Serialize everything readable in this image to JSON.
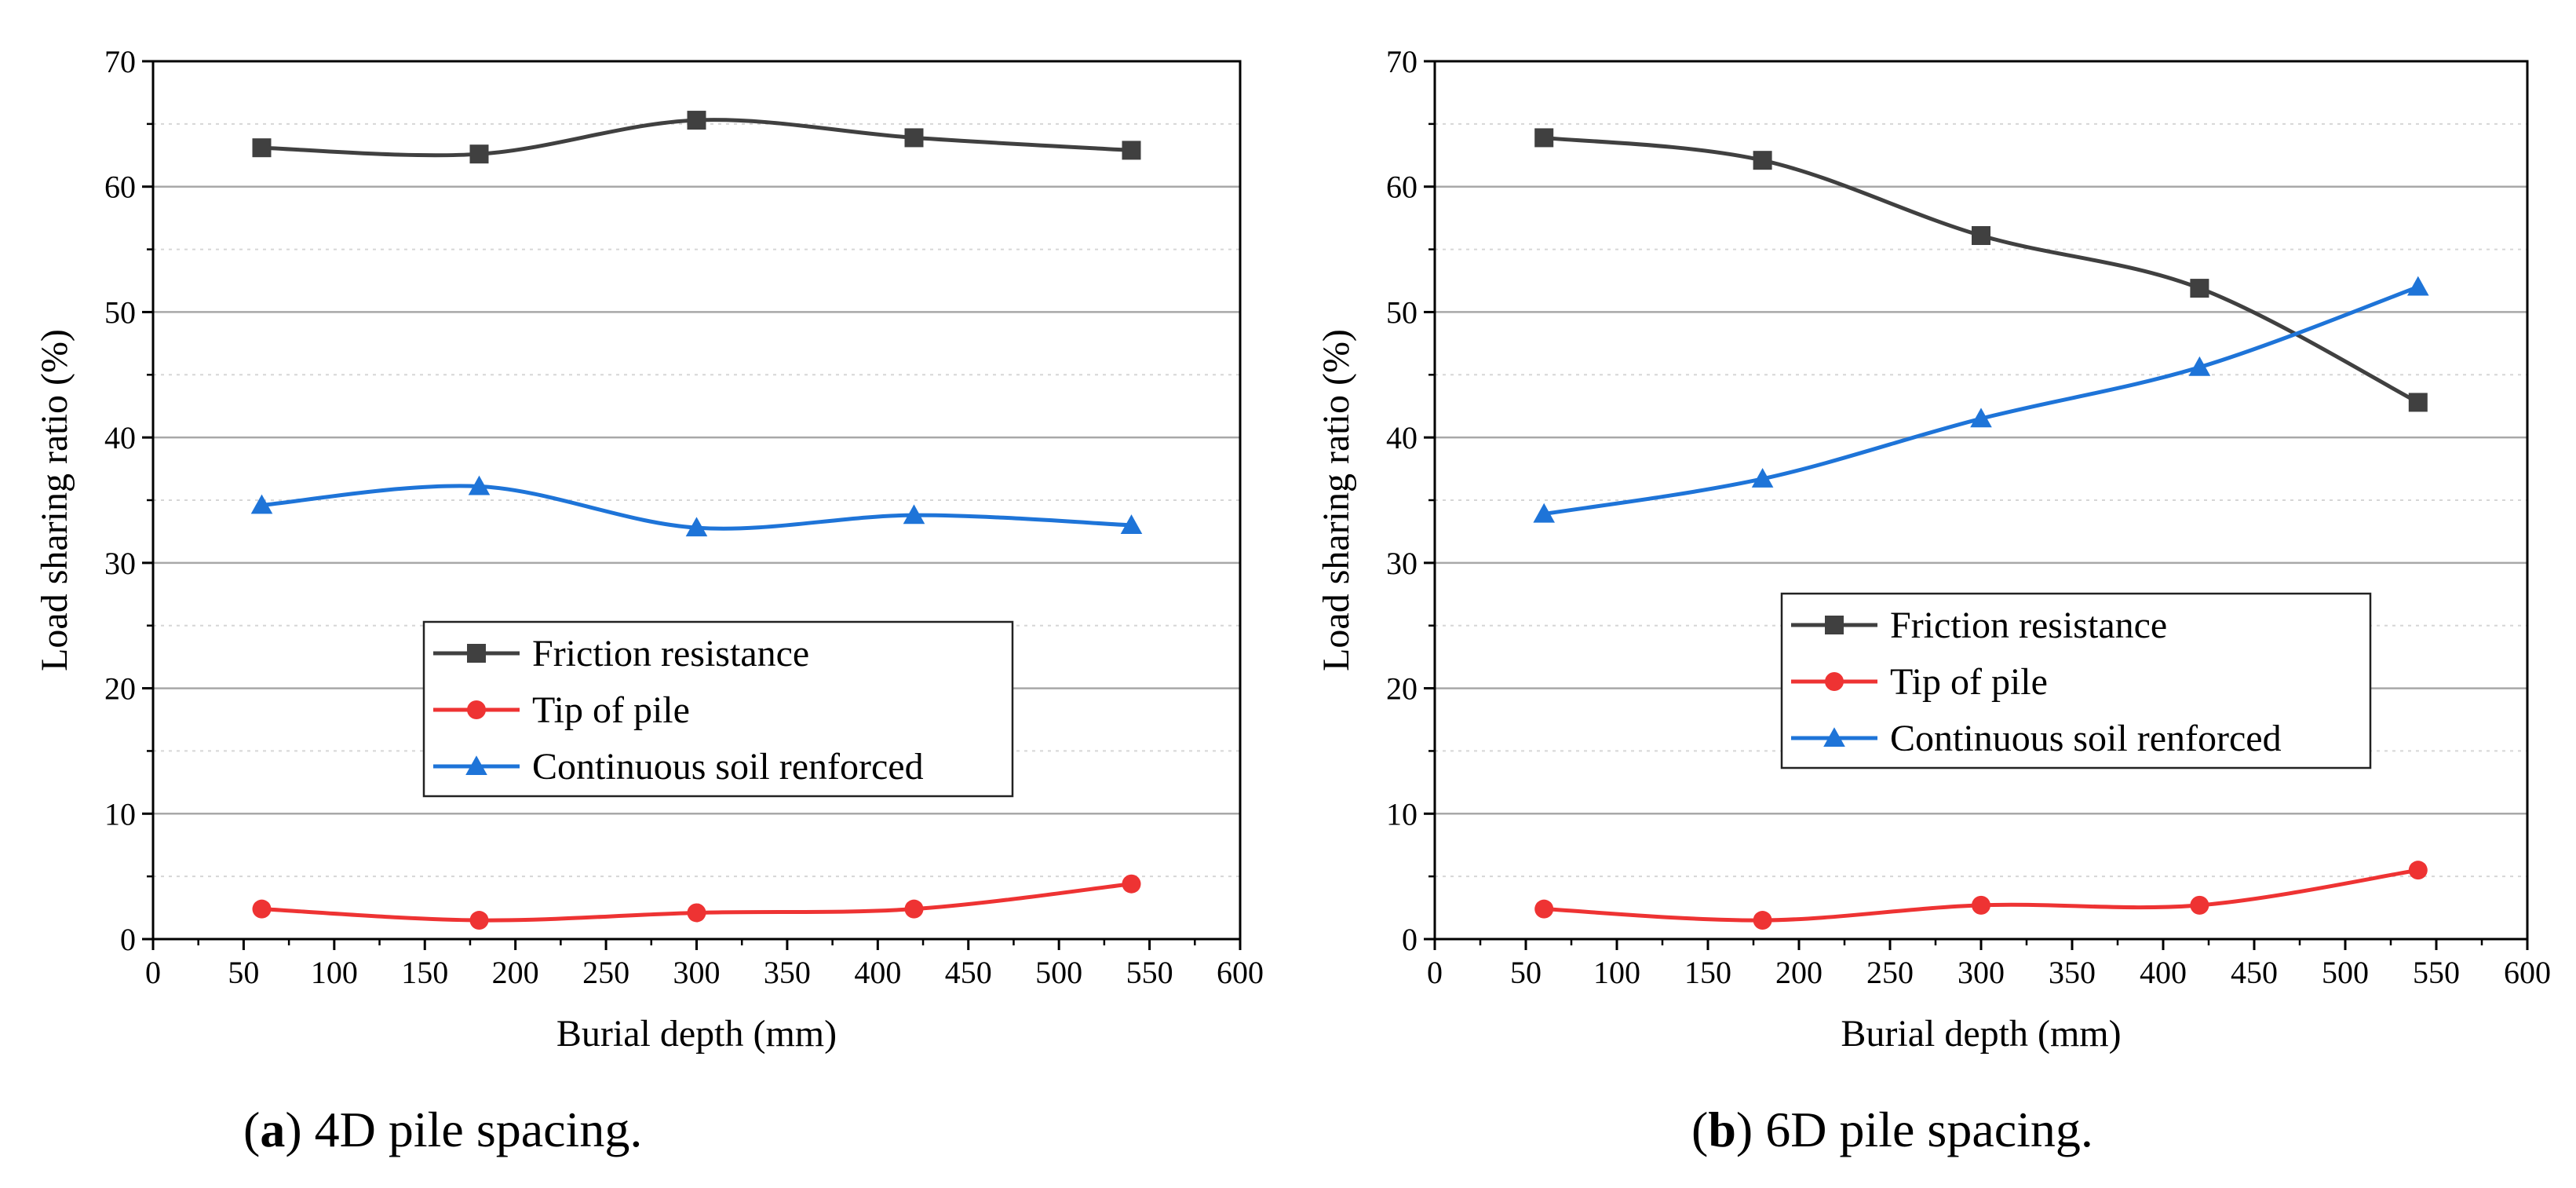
{
  "chart_data": [
    {
      "type": "line",
      "caption": {
        "letter": "a",
        "text": "4D pile spacing."
      },
      "xlabel": "Burial depth (mm)",
      "ylabel": "Load sharing ratio (%)",
      "xlim": [
        0,
        600
      ],
      "ylim": [
        0,
        70
      ],
      "xticks": [
        0,
        50,
        100,
        150,
        200,
        250,
        300,
        350,
        400,
        450,
        500,
        550,
        600
      ],
      "yticks": [
        0,
        10,
        20,
        30,
        40,
        50,
        60,
        70
      ],
      "grid": true,
      "legend_position": "center",
      "x": [
        60,
        180,
        300,
        420,
        540
      ],
      "series": [
        {
          "name": "Friction resistance",
          "color": "#404040",
          "marker": "square",
          "values": [
            63.1,
            62.6,
            65.3,
            63.9,
            62.9
          ]
        },
        {
          "name": "Tip of pile",
          "color": "#ee3333",
          "marker": "circle",
          "values": [
            2.4,
            1.5,
            2.1,
            2.4,
            4.4
          ]
        },
        {
          "name": "Continuous soil renforced",
          "color": "#1e74d8",
          "marker": "triangle",
          "values": [
            34.6,
            36.1,
            32.8,
            33.8,
            33.0
          ]
        }
      ]
    },
    {
      "type": "line",
      "caption": {
        "letter": "b",
        "text": "6D pile spacing."
      },
      "xlabel": "Burial depth (mm)",
      "ylabel": "Load sharing ratio (%)",
      "xlim": [
        0,
        600
      ],
      "ylim": [
        0,
        70
      ],
      "xticks": [
        0,
        50,
        100,
        150,
        200,
        250,
        300,
        350,
        400,
        450,
        500,
        550,
        600
      ],
      "yticks": [
        0,
        10,
        20,
        30,
        40,
        50,
        60,
        70
      ],
      "grid": true,
      "legend_position": "center-right",
      "x": [
        60,
        180,
        300,
        420,
        540
      ],
      "series": [
        {
          "name": "Friction resistance",
          "color": "#404040",
          "marker": "square",
          "values": [
            63.9,
            62.1,
            56.1,
            51.9,
            42.8
          ]
        },
        {
          "name": "Tip of pile",
          "color": "#ee3333",
          "marker": "circle",
          "values": [
            2.4,
            1.5,
            2.7,
            2.7,
            5.5
          ]
        },
        {
          "name": "Continuous soil renforced",
          "color": "#1e74d8",
          "marker": "triangle",
          "values": [
            33.9,
            36.7,
            41.5,
            45.6,
            52.0
          ]
        }
      ]
    }
  ]
}
